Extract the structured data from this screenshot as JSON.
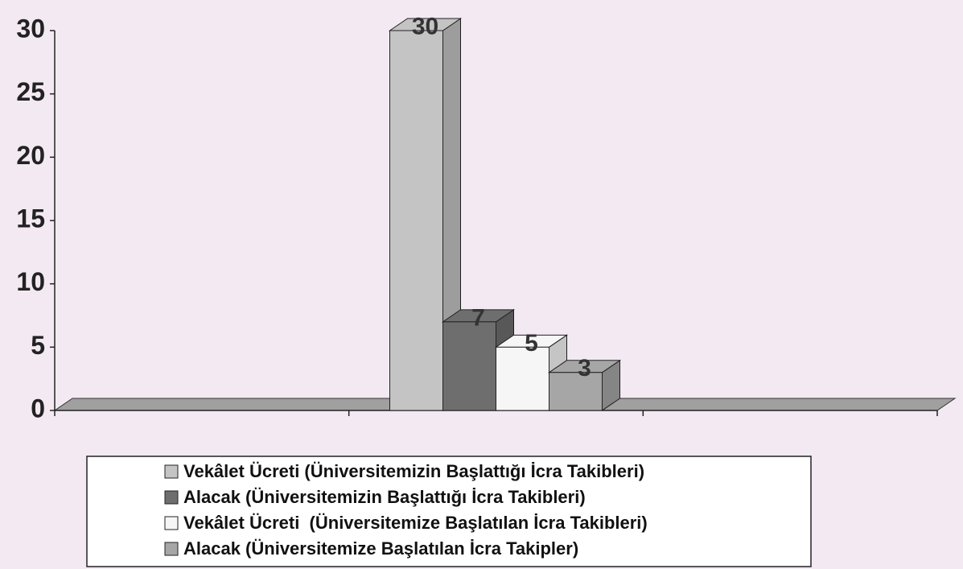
{
  "chart_data": {
    "type": "bar3d",
    "categories": [
      null,
      null,
      null
    ],
    "series": [
      {
        "name": "Vekâlet Ücreti (Üniversitemizin Başlattığı İcra Takibleri)",
        "color": "#c4c4c4",
        "values": [
          null,
          30,
          null
        ]
      },
      {
        "name": "Alacak (Üniversitemizin Başlattığı İcra Takibleri)",
        "color": "#6e6e6e",
        "values": [
          null,
          7,
          null
        ]
      },
      {
        "name": "Vekâlet Ücreti  (Üniversitemize Başlatılan İcra Takibleri)",
        "color": "#f6f6f6",
        "values": [
          null,
          5,
          null
        ]
      },
      {
        "name": "Alacak (Üniversitemize Başlatılan İcra Takipler)",
        "color": "#a6a6a6",
        "values": [
          null,
          3,
          null
        ]
      }
    ],
    "ylim": [
      0,
      30
    ],
    "yticks": [
      0,
      5,
      10,
      15,
      20,
      25,
      30
    ]
  }
}
